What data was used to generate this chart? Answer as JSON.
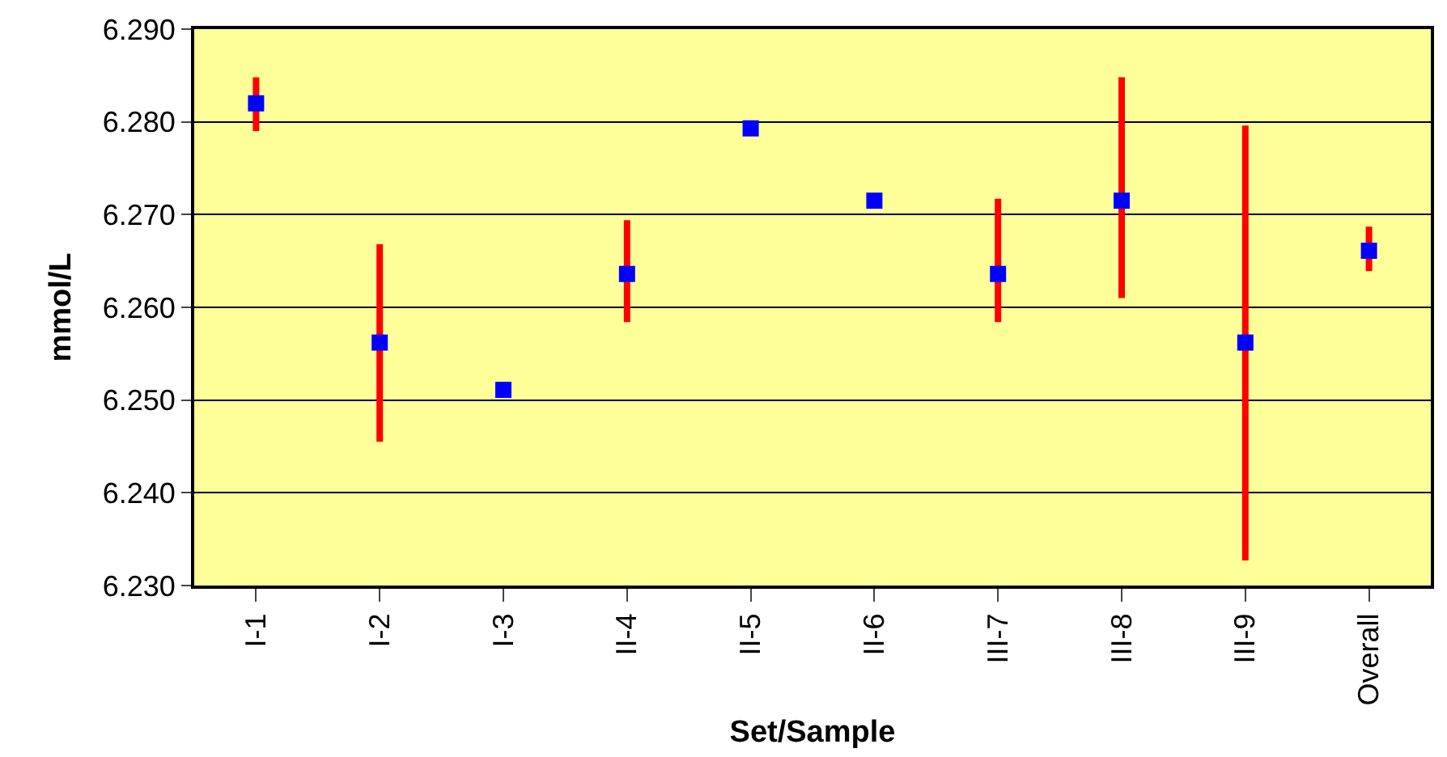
{
  "chart_data": {
    "type": "scatter",
    "xlabel": "Set/Sample",
    "ylabel": "mmol/L",
    "categories": [
      "I-1",
      "I-2",
      "I-3",
      "II-4",
      "II-5",
      "II-6",
      "III-7",
      "III-8",
      "III-9",
      "Overall"
    ],
    "values": [
      6.282,
      6.2562,
      6.2511,
      6.2636,
      6.2793,
      6.2715,
      6.2636,
      6.2715,
      6.2562,
      6.2661
    ],
    "errors": [
      [
        6.279,
        6.2848
      ],
      [
        6.2455,
        6.2668
      ],
      null,
      [
        6.2584,
        6.2694
      ],
      null,
      null,
      [
        6.2584,
        6.2717
      ],
      [
        6.261,
        6.2848
      ],
      [
        6.2327,
        6.2796
      ],
      [
        6.2639,
        6.2687
      ]
    ],
    "color": "#0000ff",
    "marker": "square",
    "grid": "y",
    "ylim": [
      6.23,
      6.29
    ],
    "yticks": [
      {
        "value": 6.23,
        "label": "6.230"
      },
      {
        "value": 6.24,
        "label": "6.240"
      },
      {
        "value": 6.25,
        "label": "6.250"
      },
      {
        "value": 6.26,
        "label": "6.260"
      },
      {
        "value": 6.27,
        "label": "6.270"
      },
      {
        "value": 6.28,
        "label": "6.280"
      },
      {
        "value": 6.29,
        "label": "6.290"
      }
    ]
  }
}
